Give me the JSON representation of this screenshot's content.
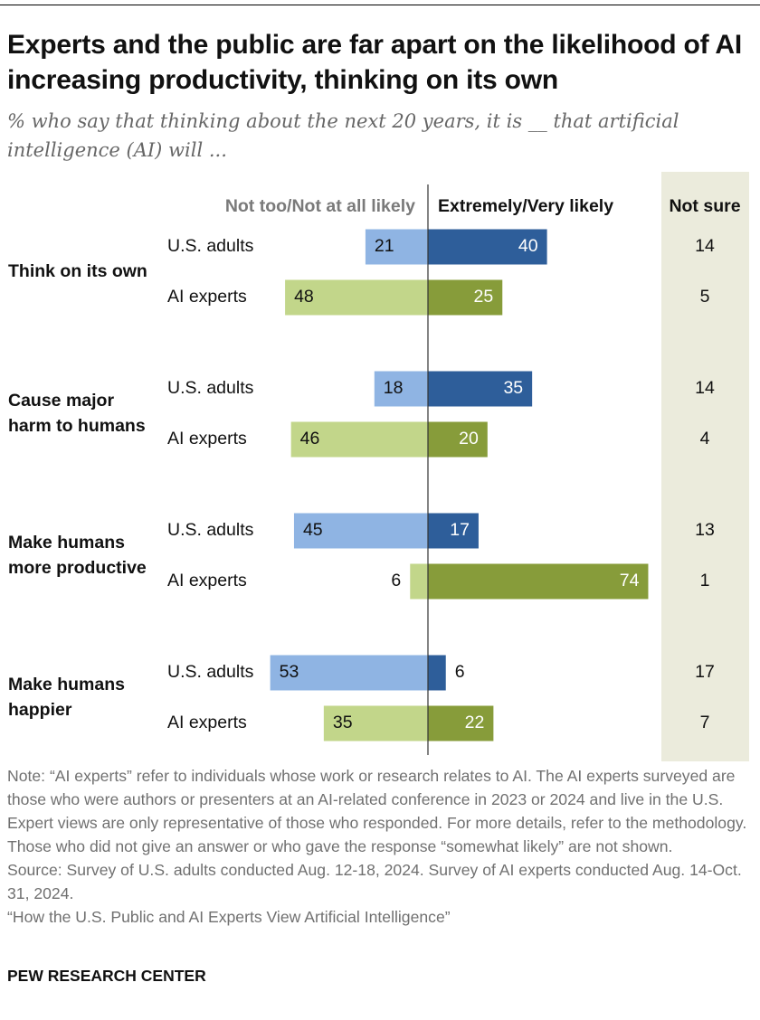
{
  "title": "Experts and the public are far apart on the likelihood of AI increasing productivity, thinking on its own",
  "subtitle": "% who say that thinking about the next 20 years, it is __ that artificial intelligence (AI) will ...",
  "note": "Note: “AI experts” refer to individuals whose work or research relates to AI. The AI experts surveyed are those who were authors or presenters at an AI-related conference in 2023 or 2024 and live in the U.S. Expert views are only representative of those who responded. For more details, refer to the methodology. Those who did not give an answer or who gave the response “somewhat likely” are not shown.",
  "source": "Source: Survey of U.S. adults conducted Aug. 12-18, 2024. Survey of AI experts conducted Aug. 14-Oct. 31, 2024.",
  "report": "“How the U.S. Public and AI Experts View Artificial Intelligence”",
  "brand": "PEW RESEARCH CENTER",
  "chart_data": {
    "type": "bar",
    "layout": "diverging horizontal",
    "column_headers": {
      "negative": "Not too/Not at all likely",
      "positive": "Extremely/Very likely",
      "not_sure": "Not sure"
    },
    "groups": [
      "Think on its own",
      "Cause major harm to humans",
      "Make humans more productive",
      "Make humans happier"
    ],
    "respondents": [
      "U.S. adults",
      "AI experts"
    ],
    "series": [
      {
        "name": "Not too/Not at all likely",
        "respondent": "U.S. adults",
        "values": [
          21,
          18,
          45,
          53
        ]
      },
      {
        "name": "Extremely/Very likely",
        "respondent": "U.S. adults",
        "values": [
          40,
          35,
          17,
          6
        ]
      },
      {
        "name": "Not sure",
        "respondent": "U.S. adults",
        "values": [
          14,
          14,
          13,
          17
        ]
      },
      {
        "name": "Not too/Not at all likely",
        "respondent": "AI experts",
        "values": [
          48,
          46,
          6,
          35
        ]
      },
      {
        "name": "Extremely/Very likely",
        "respondent": "AI experts",
        "values": [
          25,
          20,
          74,
          22
        ]
      },
      {
        "name": "Not sure",
        "respondent": "AI experts",
        "values": [
          5,
          4,
          1,
          7
        ]
      }
    ],
    "colors": {
      "adults_negative": "#8fb4e3",
      "adults_positive": "#2e5e9a",
      "experts_negative": "#c2d68a",
      "experts_positive": "#879c3a",
      "not_sure_bg": "#ebebdc"
    }
  }
}
